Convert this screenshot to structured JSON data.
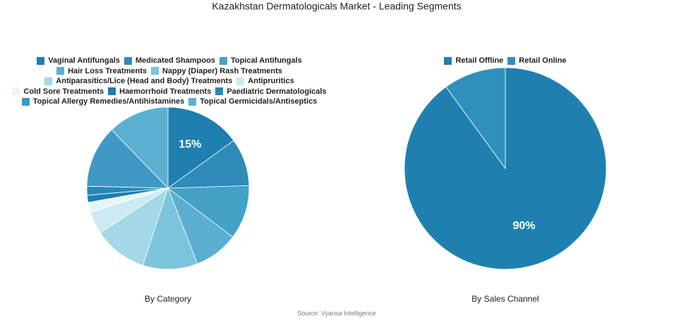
{
  "title": "Kazakhstan Dermatologicals Market - Leading Segments",
  "source": "Source: Vyansa Intelligence",
  "chart_data": [
    {
      "type": "pie",
      "label": "By Category",
      "categories": [
        "Vaginal Antifungals",
        "Medicated Shampoos",
        "Topical Antifungals",
        "Hair Loss Treatments",
        "Nappy (Diaper) Rash Treatments",
        "Antiparasitics/Lice (Head and Body) Treatments",
        "Antipruritics",
        "Cold Sore Treatments",
        "Haemorrhoid Treatments",
        "Paediatric Dermatologicals",
        "Topical Allergy Remedies/Antihistamines",
        "Topical Germicidals/Antiseptics"
      ],
      "values": [
        15,
        9.5,
        10.8,
        8.8,
        10.9,
        10.7,
        4.5,
        2,
        1.4,
        1.8,
        12.4,
        12.2
      ],
      "value_labels": [
        "15%",
        null,
        null,
        null,
        null,
        null,
        null,
        null,
        null,
        null,
        null,
        null
      ],
      "colors": [
        "#1f7fb0",
        "#2e8bba",
        "#44a2c8",
        "#5aafd0",
        "#7cc4dc",
        "#a3d8e6",
        "#c9ebf1",
        "#e6f6f8",
        "#1c7db0",
        "#2a88b8",
        "#3f99c4",
        "#5bb0d2"
      ]
    },
    {
      "type": "pie",
      "label": "By Sales Channel",
      "categories": [
        "Retail Offline",
        "Retail Online"
      ],
      "values": [
        90,
        10
      ],
      "value_labels": [
        "90%",
        null
      ],
      "colors": [
        "#1f80b0",
        "#3090bd"
      ]
    }
  ]
}
